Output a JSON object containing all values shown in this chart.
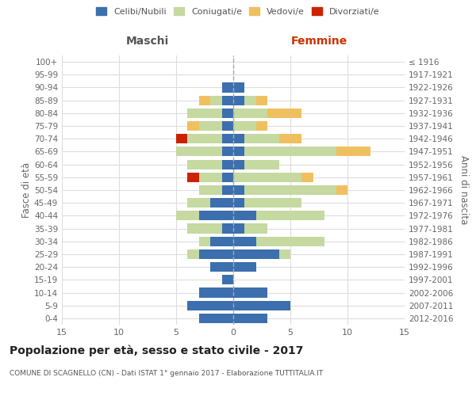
{
  "age_groups": [
    "0-4",
    "5-9",
    "10-14",
    "15-19",
    "20-24",
    "25-29",
    "30-34",
    "35-39",
    "40-44",
    "45-49",
    "50-54",
    "55-59",
    "60-64",
    "65-69",
    "70-74",
    "75-79",
    "80-84",
    "85-89",
    "90-94",
    "95-99",
    "100+"
  ],
  "birth_years": [
    "2012-2016",
    "2007-2011",
    "2002-2006",
    "1997-2001",
    "1992-1996",
    "1987-1991",
    "1982-1986",
    "1977-1981",
    "1972-1976",
    "1967-1971",
    "1962-1966",
    "1957-1961",
    "1952-1956",
    "1947-1951",
    "1942-1946",
    "1937-1941",
    "1932-1936",
    "1927-1931",
    "1922-1926",
    "1917-1921",
    "≤ 1916"
  ],
  "male": {
    "celibe": [
      3,
      4,
      3,
      1,
      2,
      3,
      2,
      1,
      3,
      2,
      1,
      1,
      1,
      1,
      1,
      1,
      1,
      1,
      1,
      0,
      0
    ],
    "coniugato": [
      0,
      0,
      0,
      0,
      0,
      1,
      1,
      3,
      2,
      2,
      2,
      2,
      3,
      4,
      3,
      2,
      3,
      1,
      0,
      0,
      0
    ],
    "vedovo": [
      0,
      0,
      0,
      0,
      0,
      0,
      0,
      0,
      0,
      0,
      0,
      0,
      0,
      0,
      0,
      1,
      0,
      1,
      0,
      0,
      0
    ],
    "divorziato": [
      0,
      0,
      0,
      0,
      0,
      0,
      0,
      0,
      0,
      0,
      0,
      1,
      0,
      0,
      1,
      0,
      0,
      0,
      0,
      0,
      0
    ]
  },
  "female": {
    "nubile": [
      3,
      5,
      3,
      0,
      2,
      4,
      2,
      1,
      2,
      1,
      1,
      0,
      1,
      1,
      1,
      0,
      0,
      1,
      1,
      0,
      0
    ],
    "coniugata": [
      0,
      0,
      0,
      0,
      0,
      1,
      6,
      2,
      6,
      5,
      8,
      6,
      3,
      8,
      3,
      2,
      3,
      1,
      0,
      0,
      0
    ],
    "vedova": [
      0,
      0,
      0,
      0,
      0,
      0,
      0,
      0,
      0,
      0,
      1,
      1,
      0,
      3,
      2,
      1,
      3,
      1,
      0,
      0,
      0
    ],
    "divorziata": [
      0,
      0,
      0,
      0,
      0,
      0,
      0,
      0,
      0,
      0,
      0,
      0,
      0,
      0,
      0,
      0,
      0,
      0,
      0,
      0,
      0
    ]
  },
  "colors": {
    "celibe": "#3c6fad",
    "coniugato": "#c5d9a0",
    "vedovo": "#f0c060",
    "divorziato": "#cc2200"
  },
  "title": "Popolazione per età, sesso e stato civile - 2017",
  "subtitle": "COMUNE DI SCAGNELLO (CN) - Dati ISTAT 1° gennaio 2017 - Elaborazione TUTTITALIA.IT",
  "xlabel_left": "Maschi",
  "xlabel_right": "Femmine",
  "ylabel_left": "Fasce di età",
  "ylabel_right": "Anni di nascita",
  "xlim": 15,
  "bg_color": "#ffffff",
  "grid_color": "#dddddd"
}
